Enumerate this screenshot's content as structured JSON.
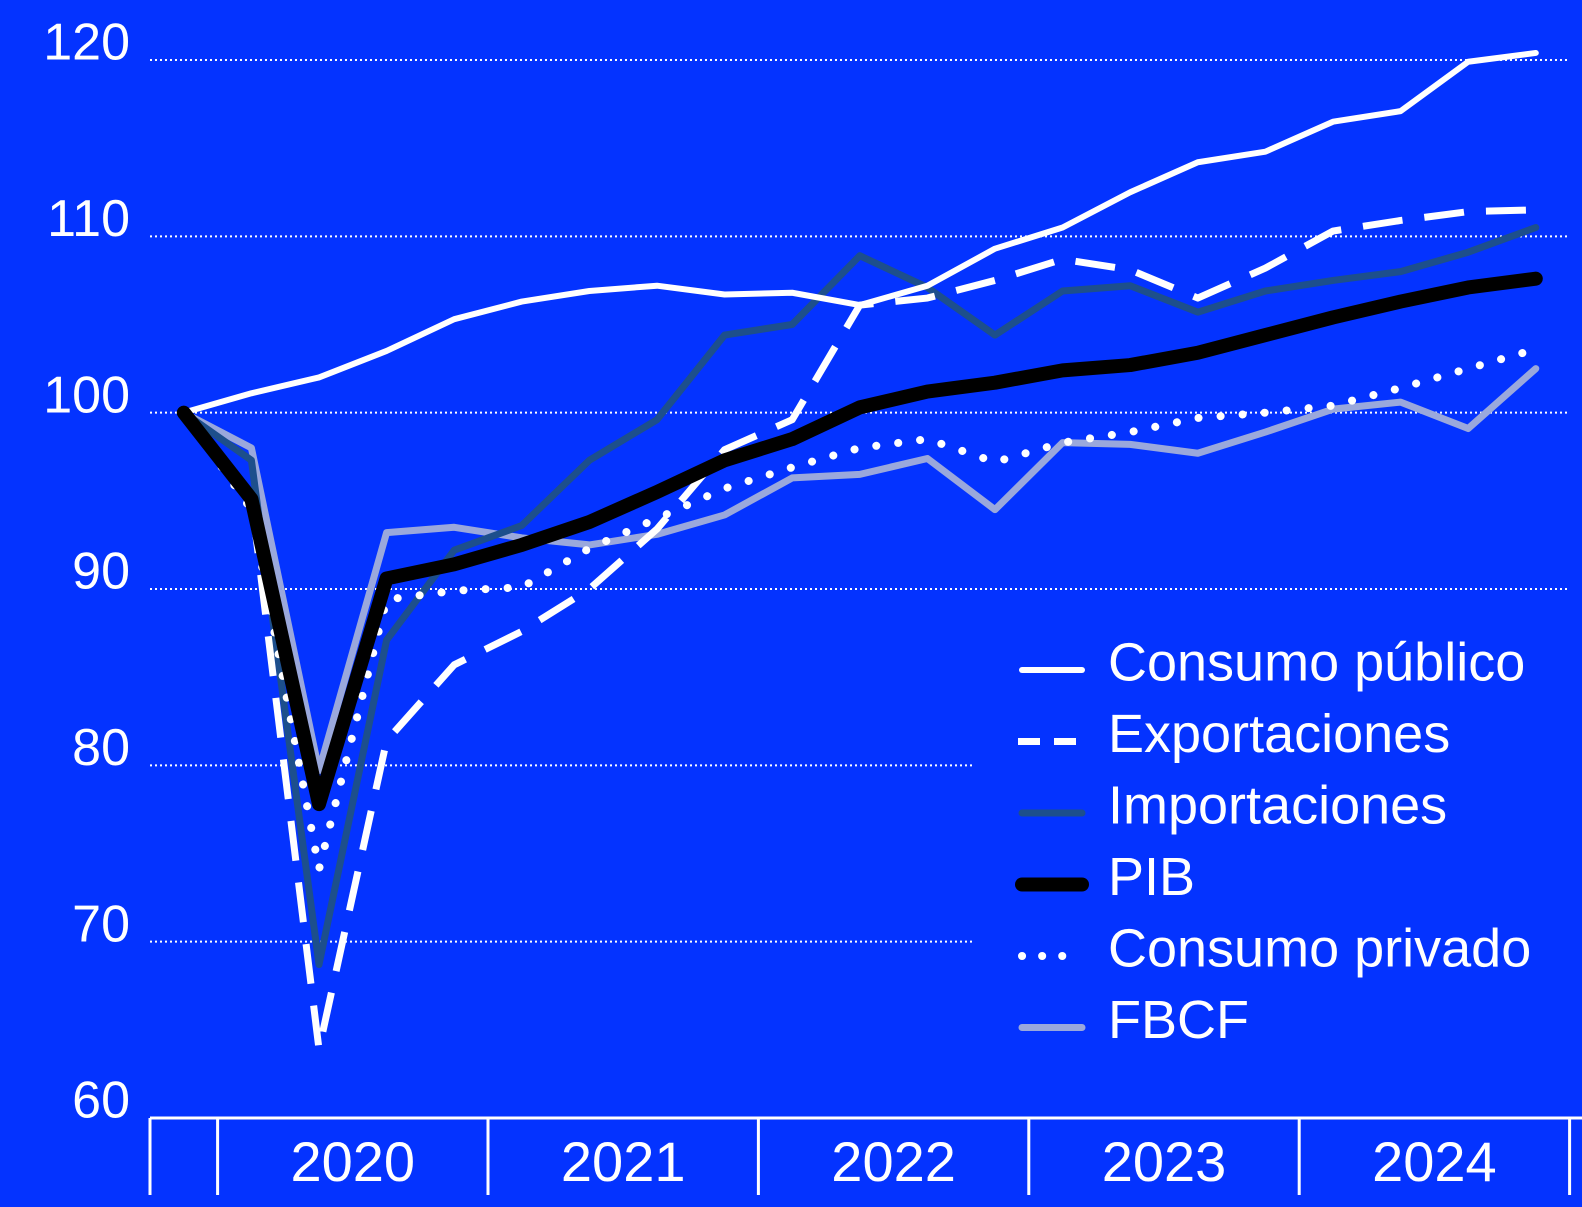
{
  "chart_data": {
    "type": "line",
    "categories": [
      null,
      null,
      null,
      null,
      null,
      null,
      null,
      null,
      null,
      null,
      null,
      null,
      null,
      null,
      null,
      null,
      null,
      null,
      null,
      null,
      null
    ],
    "year_labels": [
      "2020",
      "2021",
      "2022",
      "2023",
      "2024"
    ],
    "ylim": [
      60,
      120
    ],
    "yticks": [
      60,
      70,
      80,
      90,
      100,
      110,
      120
    ],
    "grid": true,
    "legend": "right",
    "series": [
      {
        "name": "Consumo público",
        "color": "#ffffff",
        "linestyle": "solid",
        "linewidth": 6,
        "values": [
          100.0,
          101.1,
          102.0,
          103.5,
          105.3,
          106.3,
          106.9,
          107.2,
          106.7,
          106.8,
          106.1,
          107.2,
          109.3,
          110.5,
          112.5,
          114.2,
          114.8,
          116.5,
          117.1,
          119.9,
          120.4
        ]
      },
      {
        "name": "Exportaciones",
        "color": "#ffffff",
        "linestyle": "dashed",
        "linewidth": 7,
        "values": [
          100.0,
          95.1,
          63.9,
          81.4,
          85.7,
          87.6,
          90.0,
          93.4,
          97.9,
          99.6,
          106.1,
          106.5,
          107.5,
          108.7,
          108.1,
          106.5,
          108.2,
          110.3,
          110.9,
          111.4,
          111.5
        ]
      },
      {
        "name": "Importaciones",
        "color": "#1d4f8c",
        "linestyle": "solid",
        "linewidth": 7,
        "values": [
          100.0,
          97.3,
          68.7,
          87.1,
          92.2,
          93.6,
          97.3,
          99.6,
          104.4,
          105.0,
          108.9,
          107.1,
          104.4,
          106.9,
          107.2,
          105.7,
          106.9,
          107.5,
          108.0,
          109.1,
          110.5
        ]
      },
      {
        "name": "PIB",
        "color": "#000000",
        "linestyle": "solid",
        "linewidth": 14,
        "values": [
          100.0,
          95.1,
          77.8,
          90.6,
          91.4,
          92.5,
          93.8,
          95.5,
          97.3,
          98.5,
          100.3,
          101.2,
          101.7,
          102.4,
          102.7,
          103.4,
          104.4,
          105.4,
          106.3,
          107.1,
          107.6
        ]
      },
      {
        "name": "Consumo privado",
        "color": "#ffffff",
        "linestyle": "dotted",
        "linewidth": 8,
        "values": [
          100.0,
          94.5,
          74.1,
          89.4,
          89.9,
          90.1,
          92.3,
          94.0,
          95.7,
          96.9,
          98.0,
          98.5,
          97.2,
          98.3,
          98.9,
          99.7,
          100.0,
          100.4,
          101.4,
          102.5,
          103.6
        ]
      },
      {
        "name": "FBCF",
        "color": "#9aa8dc",
        "linestyle": "solid",
        "linewidth": 7,
        "values": [
          100.0,
          98.0,
          79.7,
          93.2,
          93.5,
          92.9,
          92.5,
          93.1,
          94.2,
          96.3,
          96.5,
          97.4,
          94.5,
          98.3,
          98.2,
          97.7,
          98.9,
          100.2,
          100.6,
          99.1,
          102.5
        ]
      }
    ]
  }
}
